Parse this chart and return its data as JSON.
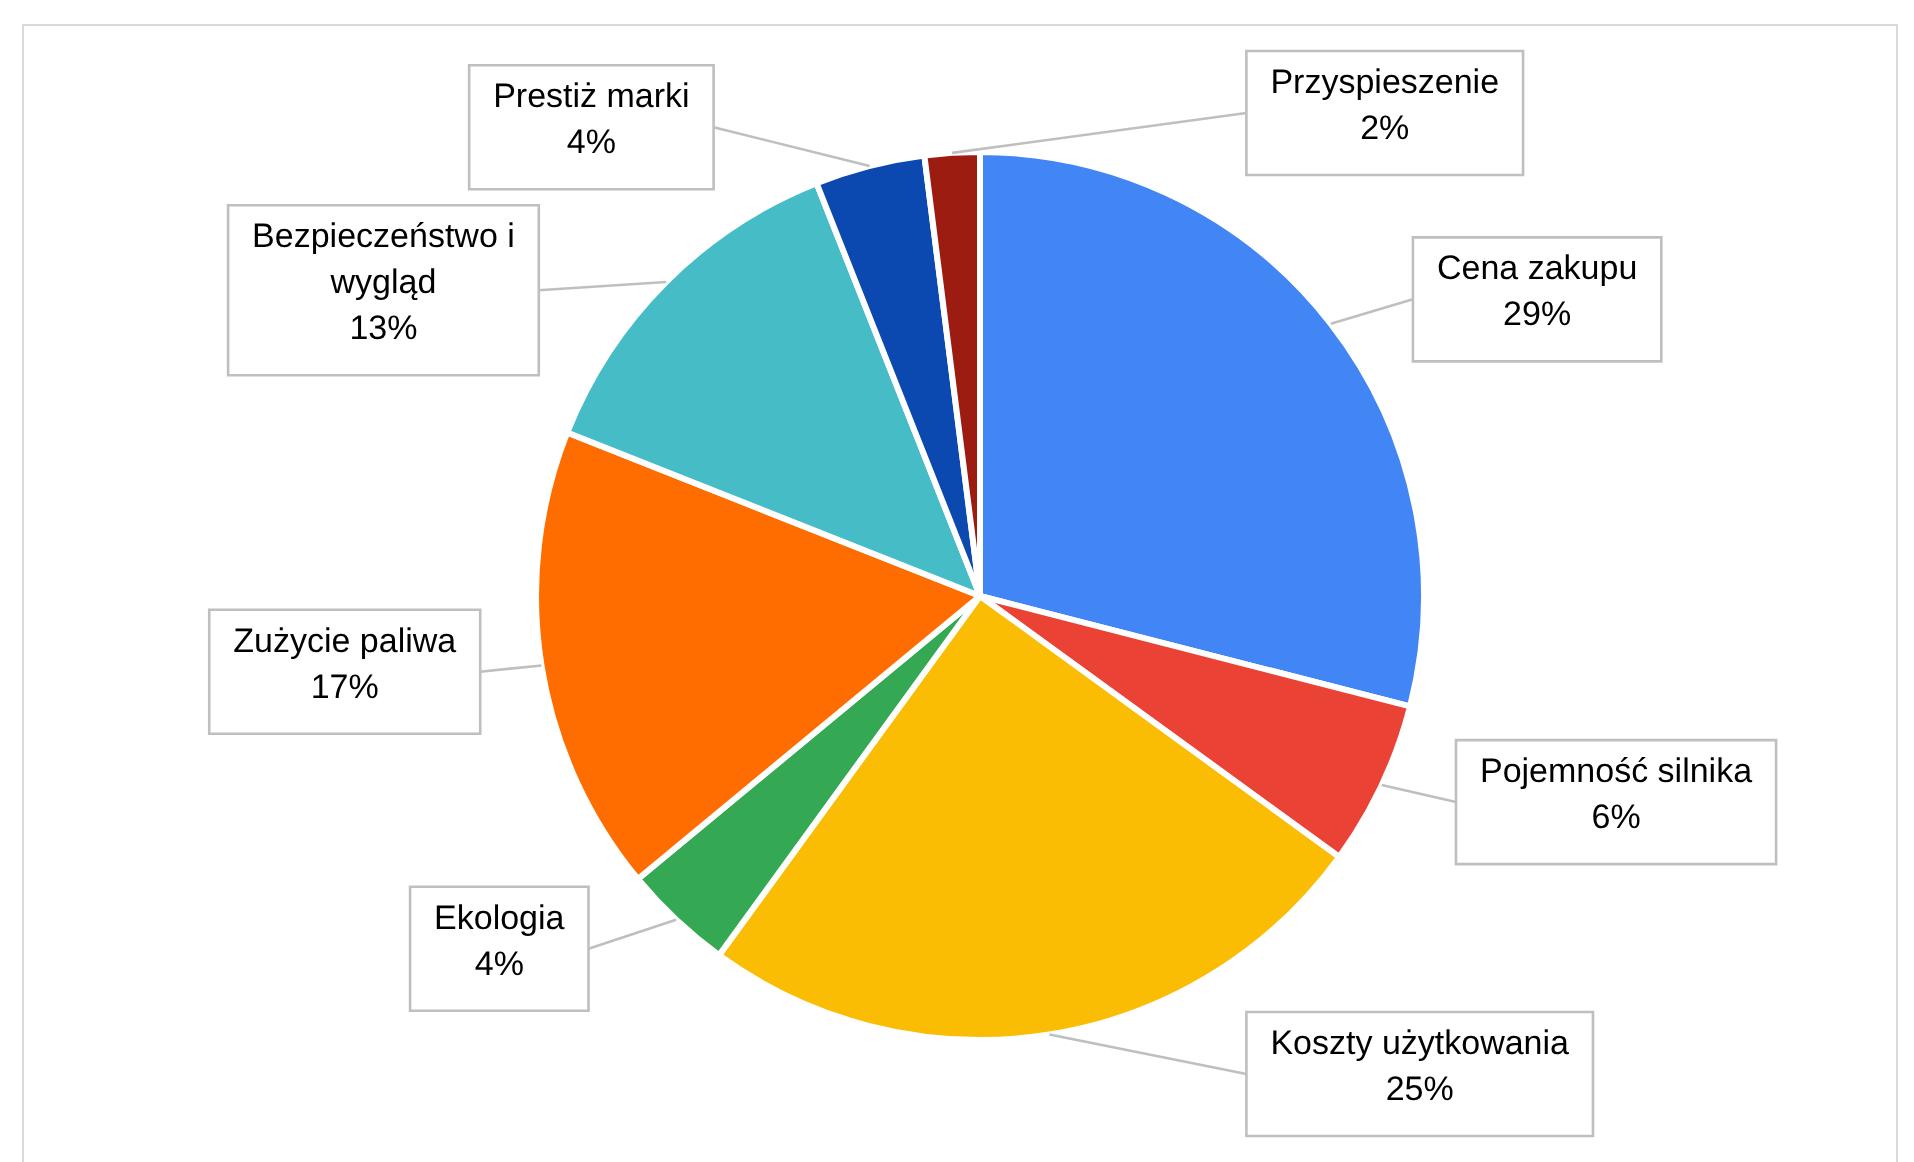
{
  "chart_data": {
    "type": "pie",
    "categories": [
      "Cena zakupu",
      "Pojemność silnika",
      "Koszty użytkowania",
      "Ekologia",
      "Zużycie paliwa",
      "Bezpieczeństwo i wygląd",
      "Prestiż marki",
      "Przyspieszenie"
    ],
    "values": [
      29,
      6,
      25,
      4,
      17,
      13,
      4,
      2
    ],
    "colors": [
      "#4285f4",
      "#ea4335",
      "#fbbc04",
      "#34a853",
      "#ff6d01",
      "#46bdc6",
      "#0b48b0",
      "#9c1c12"
    ],
    "value_labels": [
      "29%",
      "6%",
      "25%",
      "4%",
      "17%",
      "13%",
      "4%",
      "2%"
    ]
  }
}
